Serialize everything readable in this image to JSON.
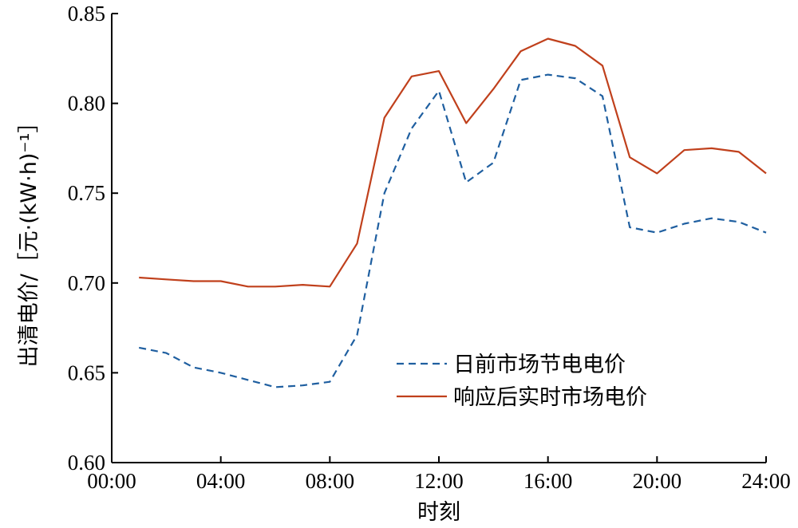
{
  "chart_data": {
    "type": "line",
    "xlabel": "时刻",
    "ylabel": "出清电价/［元·(kW·h)⁻¹］",
    "x_ticks": [
      "00:00",
      "04:00",
      "08:00",
      "12:00",
      "16:00",
      "20:00",
      "24:00"
    ],
    "y_ticks": [
      "0.60",
      "0.65",
      "0.70",
      "0.75",
      "0.80",
      "0.85"
    ],
    "xlim_hours": [
      0,
      24
    ],
    "ylim": [
      0.6,
      0.85
    ],
    "x_hours": [
      1,
      2,
      3,
      4,
      5,
      6,
      7,
      8,
      9,
      10,
      11,
      12,
      13,
      14,
      15,
      16,
      17,
      18,
      19,
      20,
      21,
      22,
      23,
      24
    ],
    "series": [
      {
        "name": "日前市场节电电价",
        "color": "#1f5fa0",
        "style": "dashed",
        "values": [
          0.664,
          0.661,
          0.653,
          0.65,
          0.646,
          0.642,
          0.643,
          0.645,
          0.671,
          0.75,
          0.786,
          0.807,
          0.756,
          0.767,
          0.813,
          0.816,
          0.814,
          0.804,
          0.731,
          0.728,
          0.733,
          0.736,
          0.734,
          0.728
        ]
      },
      {
        "name": "响应后实时市场电价",
        "color": "#c0401c",
        "style": "solid",
        "values": [
          0.703,
          0.702,
          0.701,
          0.701,
          0.698,
          0.698,
          0.699,
          0.698,
          0.722,
          0.792,
          0.815,
          0.818,
          0.789,
          0.808,
          0.829,
          0.836,
          0.832,
          0.821,
          0.77,
          0.761,
          0.774,
          0.775,
          0.773,
          0.761
        ]
      }
    ],
    "legend_position": "lower-right",
    "grid": false
  }
}
